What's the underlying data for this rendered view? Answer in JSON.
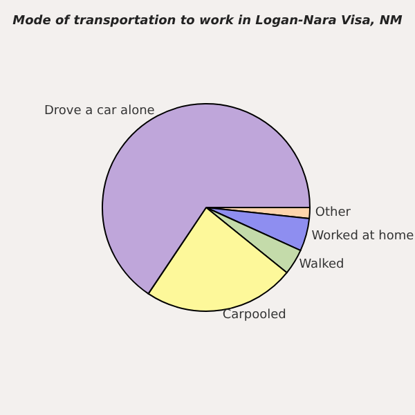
{
  "chart_data": {
    "type": "pie",
    "title": "Mode of transportation to work in Logan-Nara Visa, NM",
    "categories": [
      "Other",
      "Worked at home",
      "Walked",
      "Carpooled",
      "Drove a car alone"
    ],
    "values": [
      1.7,
      5.1,
      4.0,
      23.6,
      65.6
    ],
    "colors": [
      "#fdd5ac",
      "#8e8ef0",
      "#c4dbaa",
      "#fdf89a",
      "#bfa6da"
    ]
  }
}
